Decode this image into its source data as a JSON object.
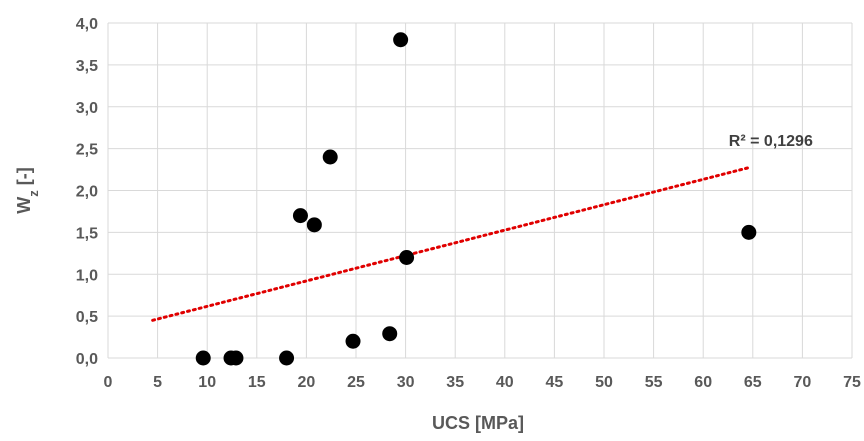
{
  "chart_data": {
    "type": "scatter",
    "title": "",
    "xlabel": "UCS [MPa]",
    "ylabel_main": "W",
    "ylabel_sub": "z",
    "ylabel_suffix": " [-]",
    "xlim": [
      0,
      75
    ],
    "ylim": [
      0,
      4
    ],
    "x_ticks": [
      "0",
      "5",
      "10",
      "15",
      "20",
      "25",
      "30",
      "35",
      "40",
      "45",
      "50",
      "55",
      "60",
      "65",
      "70",
      "75"
    ],
    "y_ticks": [
      "0,0",
      "0,5",
      "1,0",
      "1,5",
      "2,0",
      "2,5",
      "3,0",
      "3,5",
      "4,0"
    ],
    "grid": true,
    "points": [
      {
        "x": 9.6,
        "y": 0.0
      },
      {
        "x": 12.4,
        "y": 0.0
      },
      {
        "x": 12.9,
        "y": 0.0
      },
      {
        "x": 18.0,
        "y": 0.0
      },
      {
        "x": 19.4,
        "y": 1.7
      },
      {
        "x": 20.8,
        "y": 1.59
      },
      {
        "x": 22.4,
        "y": 2.4
      },
      {
        "x": 24.7,
        "y": 0.2
      },
      {
        "x": 28.4,
        "y": 0.29
      },
      {
        "x": 29.5,
        "y": 3.8
      },
      {
        "x": 30.1,
        "y": 1.2
      },
      {
        "x": 64.6,
        "y": 1.5
      }
    ],
    "trendline": {
      "type": "linear",
      "x_start": 4.5,
      "y_start": 0.45,
      "x_end": 64.5,
      "y_end": 2.27,
      "color": "#e00000"
    },
    "r2_label": "R² = 0,1296",
    "marker_color": "#000000",
    "grid_color": "#d9d9d9"
  }
}
